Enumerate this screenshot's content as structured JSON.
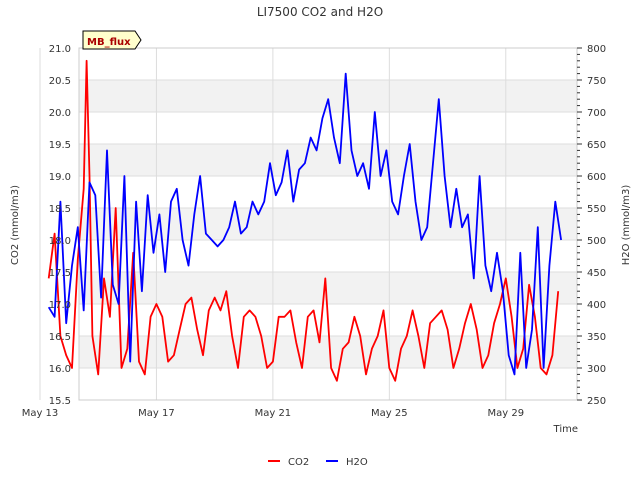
{
  "chart_data": {
    "type": "line",
    "title": "LI7500 CO2 and H2O",
    "badge": "MB_flux",
    "xlabel": "Time",
    "ylabel_left": "CO2 (mmol/m3)",
    "ylabel_right": "H2O (mmol/m3)",
    "x_ticks": [
      "May 13",
      "May 17",
      "May 21",
      "May 25",
      "May 29"
    ],
    "y_left_ticks": [
      "15.5",
      "16.0",
      "16.5",
      "17.0",
      "17.5",
      "18.0",
      "18.5",
      "19.0",
      "19.5",
      "20.0",
      "20.5",
      "21.0"
    ],
    "y_right_ticks": [
      "250",
      "300",
      "350",
      "400",
      "450",
      "500",
      "550",
      "600",
      "650",
      "700",
      "750",
      "800"
    ],
    "ylim_left": [
      15.5,
      21.0
    ],
    "ylim_right": [
      250,
      800
    ],
    "xlim_days": [
      13,
      31
    ],
    "grid": true,
    "legend": "bottom-center",
    "series": [
      {
        "name": "CO2",
        "axis": "left",
        "color": "#ff0000",
        "x": [
          13.3,
          13.5,
          13.7,
          13.9,
          14.1,
          14.3,
          14.5,
          14.6,
          14.7,
          14.8,
          15.0,
          15.2,
          15.4,
          15.6,
          15.8,
          16.0,
          16.2,
          16.4,
          16.6,
          16.8,
          17.0,
          17.2,
          17.4,
          17.6,
          17.8,
          18.0,
          18.2,
          18.4,
          18.6,
          18.8,
          19.0,
          19.2,
          19.4,
          19.6,
          19.8,
          20.0,
          20.2,
          20.4,
          20.6,
          20.8,
          21.0,
          21.2,
          21.4,
          21.6,
          21.8,
          22.0,
          22.2,
          22.4,
          22.6,
          22.8,
          23.0,
          23.2,
          23.4,
          23.6,
          23.8,
          24.0,
          24.2,
          24.4,
          24.6,
          24.8,
          25.0,
          25.2,
          25.4,
          25.6,
          25.8,
          26.0,
          26.2,
          26.4,
          26.6,
          26.8,
          27.0,
          27.2,
          27.4,
          27.6,
          27.8,
          28.0,
          28.2,
          28.4,
          28.6,
          28.8,
          29.0,
          29.2,
          29.4,
          29.6,
          29.8,
          30.0,
          30.2,
          30.4,
          30.6,
          30.8
        ],
        "y": [
          17.4,
          18.1,
          16.5,
          16.2,
          16.0,
          17.7,
          18.8,
          20.8,
          19.0,
          16.5,
          15.9,
          17.4,
          16.8,
          18.5,
          16.0,
          16.3,
          17.8,
          16.1,
          15.9,
          16.8,
          17.0,
          16.8,
          16.1,
          16.2,
          16.6,
          17.0,
          17.1,
          16.6,
          16.2,
          16.9,
          17.1,
          16.9,
          17.2,
          16.5,
          16.0,
          16.8,
          16.9,
          16.8,
          16.5,
          16.0,
          16.1,
          16.8,
          16.8,
          16.9,
          16.4,
          16.0,
          16.8,
          16.9,
          16.4,
          17.4,
          16.0,
          15.8,
          16.3,
          16.4,
          16.8,
          16.5,
          15.9,
          16.3,
          16.5,
          16.9,
          16.0,
          15.8,
          16.3,
          16.5,
          16.9,
          16.5,
          16.0,
          16.7,
          16.8,
          16.9,
          16.6,
          16.0,
          16.3,
          16.7,
          17.0,
          16.6,
          16.0,
          16.2,
          16.7,
          17.0,
          17.4,
          16.8,
          16.0,
          16.3,
          17.3,
          16.8,
          16.0,
          15.9,
          16.2,
          17.2
        ]
      },
      {
        "name": "H2O",
        "axis": "right",
        "color": "#0000ff",
        "x": [
          13.3,
          13.5,
          13.7,
          13.9,
          14.1,
          14.3,
          14.5,
          14.7,
          14.9,
          15.1,
          15.3,
          15.5,
          15.7,
          15.9,
          16.1,
          16.3,
          16.5,
          16.7,
          16.9,
          17.1,
          17.3,
          17.5,
          17.7,
          17.9,
          18.1,
          18.3,
          18.5,
          18.7,
          18.9,
          19.1,
          19.3,
          19.5,
          19.7,
          19.9,
          20.1,
          20.3,
          20.5,
          20.7,
          20.9,
          21.1,
          21.3,
          21.5,
          21.7,
          21.9,
          22.1,
          22.3,
          22.5,
          22.7,
          22.9,
          23.1,
          23.3,
          23.5,
          23.7,
          23.9,
          24.1,
          24.3,
          24.5,
          24.7,
          24.9,
          25.1,
          25.3,
          25.5,
          25.7,
          25.9,
          26.1,
          26.3,
          26.5,
          26.7,
          26.9,
          27.1,
          27.3,
          27.5,
          27.7,
          27.9,
          28.1,
          28.3,
          28.5,
          28.7,
          28.9,
          29.1,
          29.3,
          29.5,
          29.7,
          29.9,
          30.1,
          30.3,
          30.5,
          30.7,
          30.9
        ],
        "y": [
          395,
          380,
          560,
          370,
          460,
          520,
          390,
          590,
          570,
          410,
          640,
          430,
          400,
          600,
          310,
          560,
          420,
          570,
          480,
          540,
          450,
          560,
          580,
          500,
          460,
          540,
          600,
          510,
          500,
          490,
          500,
          520,
          560,
          510,
          520,
          560,
          540,
          560,
          620,
          570,
          590,
          640,
          560,
          610,
          620,
          660,
          640,
          690,
          720,
          660,
          620,
          760,
          640,
          600,
          620,
          580,
          700,
          600,
          640,
          560,
          540,
          600,
          650,
          560,
          500,
          520,
          620,
          720,
          600,
          520,
          580,
          520,
          540,
          440,
          600,
          460,
          420,
          480,
          420,
          320,
          290,
          480,
          300,
          360,
          520,
          300,
          460,
          560,
          500
        ]
      }
    ]
  }
}
